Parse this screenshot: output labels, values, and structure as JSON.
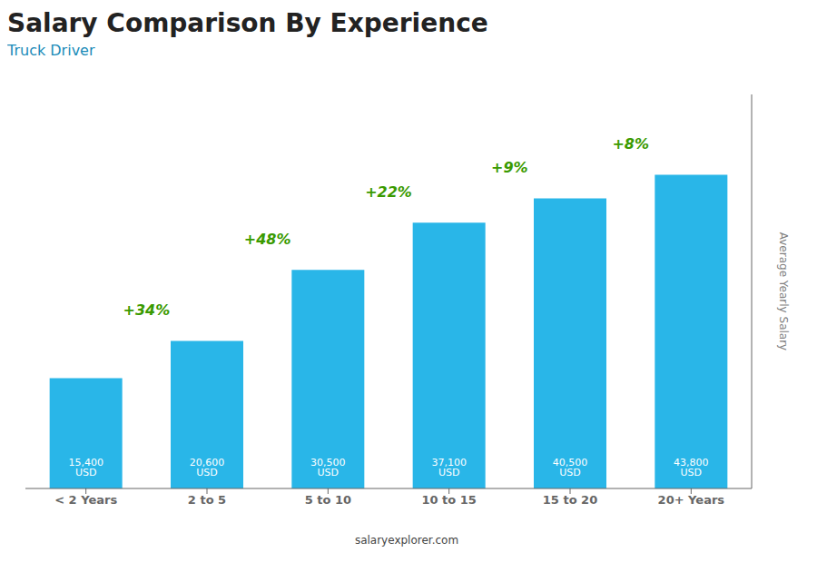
{
  "chart_data": {
    "type": "bar",
    "title": "Salary Comparison By Experience",
    "subtitle": "Truck Driver",
    "ylabel": "Average Yearly Salary",
    "watermark": "salaryexplorer.com",
    "categories": [
      "< 2 Years",
      "2 to 5",
      "5 to 10",
      "10 to 15",
      "15 to 20",
      "20+ Years"
    ],
    "values": [
      15400,
      20600,
      30500,
      37100,
      40500,
      43800
    ],
    "value_labels": [
      "15,400 USD",
      "20,600 USD",
      "30,500 USD",
      "37,100 USD",
      "40,500 USD",
      "43,800 USD"
    ],
    "data_labels": true,
    "pct_changes": [
      null,
      "+34%",
      "+48%",
      "+22%",
      "+9%",
      "+8%"
    ],
    "color": "#29B6E8",
    "ylim": [
      0,
      55000
    ],
    "grid": false,
    "tick_labels": "x"
  }
}
